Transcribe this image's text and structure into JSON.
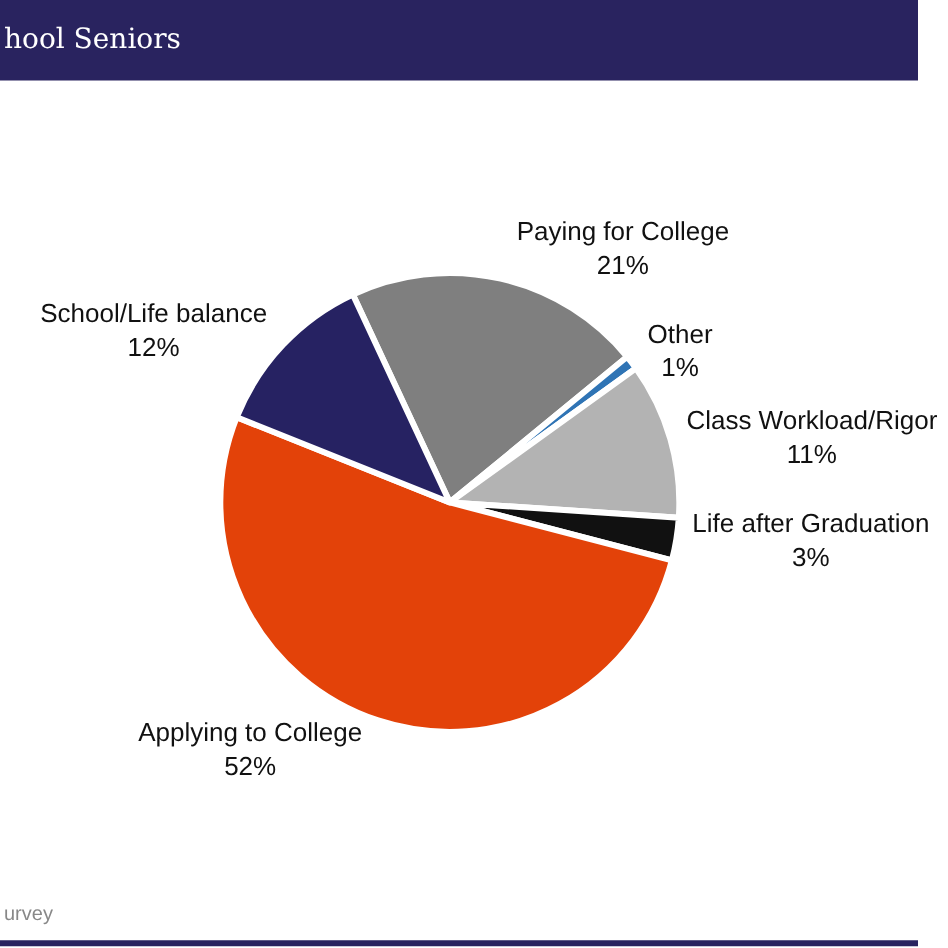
{
  "chart_data": {
    "type": "pie",
    "title": "hool Seniors",
    "categories": [
      "Paying for College",
      "Other",
      "Class Workload/Rigor",
      "Life after Graduation",
      "Applying to College",
      "School/Life balance"
    ],
    "values": [
      21,
      1,
      11,
      3,
      52,
      12
    ],
    "value_labels": [
      "21%",
      "1%",
      "11%",
      "3%",
      "52%",
      "12%"
    ],
    "colors": [
      "#7f7f7f",
      "#2f74b5",
      "#b3b3b3",
      "#111111",
      "#e34209",
      "#262262"
    ],
    "annotations": [
      "urvey"
    ]
  }
}
